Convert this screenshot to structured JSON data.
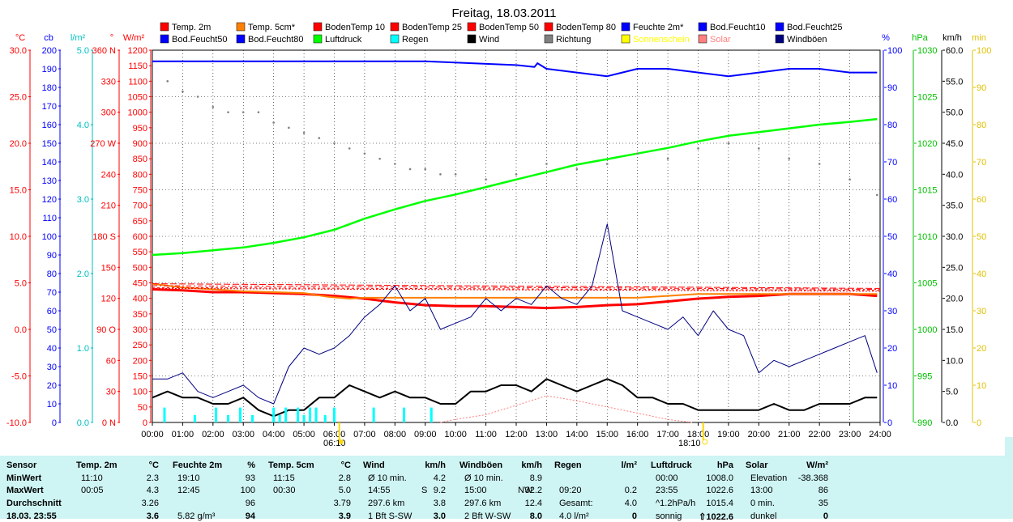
{
  "title": "Freitag, 18.03.2011",
  "colors": {
    "temp2m": "#ff0000",
    "temp5cm": "#ff8000",
    "boden": "#ff0000",
    "feuchte": "#0000ff",
    "luftdruck": "#00ff00",
    "regen": "#00ffff",
    "wind": "#000000",
    "richtung": "#808080",
    "sonne": "#ffff00",
    "solar": "#ff8080",
    "windboeen": "#000080",
    "stats_bg": "#cef4f4"
  },
  "legend": [
    {
      "label": "Temp. 2m",
      "color": "#ff0000"
    },
    {
      "label": "Temp. 5cm*",
      "color": "#ff8000"
    },
    {
      "label": "BodenTemp 10",
      "color": "#ff0000"
    },
    {
      "label": "BodenTemp 25",
      "color": "#ff0000"
    },
    {
      "label": "BodenTemp 50",
      "color": "#ff0000"
    },
    {
      "label": "BodenTemp 80",
      "color": "#ff0000"
    },
    {
      "label": "Feuchte 2m*",
      "color": "#0000ff"
    },
    {
      "label": "Bod.Feucht10",
      "color": "#0000ff"
    },
    {
      "label": "Bod.Feucht25",
      "color": "#0000ff"
    },
    {
      "label": "Bod.Feucht50",
      "color": "#0000ff"
    },
    {
      "label": "Bod.Feucht80",
      "color": "#0000ff"
    },
    {
      "label": "Luftdruck",
      "color": "#00ff00"
    },
    {
      "label": "Regen",
      "color": "#00ffff"
    },
    {
      "label": "Wind",
      "color": "#000000"
    },
    {
      "label": "Richtung",
      "color": "#808080"
    },
    {
      "label": "Sonnenschein",
      "color": "#ffff00"
    },
    {
      "label": "Solar",
      "color": "#ff8080"
    },
    {
      "label": "Windböen",
      "color": "#000080"
    }
  ],
  "axes": {
    "celsius": {
      "unit": "°C",
      "color": "#ff0000",
      "ticks": [
        "30.0",
        "25.0",
        "20.0",
        "15.0",
        "10.0",
        "5.0",
        "0.0",
        "-5.0",
        "-10.0"
      ]
    },
    "cb": {
      "unit": "cb",
      "color": "#0000ff",
      "ticks": [
        "200",
        "190",
        "180",
        "170",
        "160",
        "150",
        "140",
        "130",
        "120",
        "110",
        "100",
        "90",
        "80",
        "70",
        "60",
        "50",
        "40",
        "30",
        "20",
        "10",
        "0"
      ]
    },
    "lm2": {
      "unit": "l/m²",
      "color": "#00c0c0",
      "ticks": [
        "5.0",
        "4.0",
        "3.0",
        "2.0",
        "1.0",
        "0.0"
      ]
    },
    "deg": {
      "unit": "°",
      "color": "#ff0000",
      "ticks": [
        "360 N",
        "330",
        "300",
        "270 W",
        "240",
        "210",
        "180 S",
        "150",
        "120",
        "90 O",
        "60",
        "30",
        "0 N"
      ]
    },
    "wm2": {
      "unit": "W/m²",
      "color": "#ff0000",
      "ticks": [
        "1200",
        "1150",
        "1100",
        "1050",
        "1000",
        "950",
        "900",
        "850",
        "800",
        "750",
        "700",
        "650",
        "600",
        "550",
        "500",
        "450",
        "400",
        "350",
        "300",
        "250",
        "200",
        "150",
        "100",
        "50",
        "0"
      ]
    },
    "pct": {
      "unit": "%",
      "color": "#0000ff",
      "ticks": [
        "100",
        "90",
        "80",
        "70",
        "60",
        "50",
        "40",
        "30",
        "20",
        "10",
        "0"
      ]
    },
    "hpa": {
      "unit": "hPa",
      "color": "#00c000",
      "ticks": [
        "1030",
        "1025",
        "1020",
        "1015",
        "1010",
        "1005",
        "1000",
        "995",
        "990"
      ]
    },
    "kmh": {
      "unit": "km/h",
      "color": "#000000",
      "ticks": [
        "60.0",
        "55.0",
        "50.0",
        "45.0",
        "40.0",
        "35.0",
        "30.0",
        "25.0",
        "20.0",
        "15.0",
        "10.0",
        "5.0",
        "0.0"
      ]
    },
    "min": {
      "unit": "min",
      "color": "#e0c000",
      "ticks": [
        "100",
        "90",
        "80",
        "70",
        "60",
        "50",
        "40",
        "30",
        "20",
        "10",
        "0"
      ]
    }
  },
  "x_ticks": [
    "00:00",
    "01:00",
    "02:00",
    "03:00",
    "04:00",
    "05:00",
    "06:00",
    "07:00",
    "08:00",
    "09:00",
    "10:00",
    "11:00",
    "12:00",
    "13:00",
    "14:00",
    "15:00",
    "16:00",
    "17:00",
    "18:00",
    "19:00",
    "20:00",
    "21:00",
    "22:00",
    "23:00",
    "24:00"
  ],
  "sunrise": "06:10",
  "sunset": "18:10",
  "chart_data": {
    "type": "line",
    "title": "Freitag, 18.03.2011",
    "x_range": [
      "00:00",
      "24:00"
    ],
    "ylim_celsius": [
      -10,
      30
    ],
    "ylim_pct": [
      0,
      100
    ],
    "ylim_hpa": [
      990,
      1030
    ],
    "ylim_kmh": [
      0,
      60
    ],
    "ylim_deg": [
      0,
      360
    ],
    "ylim_wm2": [
      0,
      1200
    ],
    "grid": true,
    "legend_position": "top",
    "series": [
      {
        "name": "Temp. 2m",
        "axis": "celsius",
        "x": [
          0,
          1,
          2,
          3,
          4,
          5,
          6,
          7,
          8,
          9,
          10,
          11,
          12,
          13,
          14,
          15,
          16,
          17,
          18,
          19,
          20,
          21,
          22,
          23,
          23.9
        ],
        "y": [
          4.3,
          4.2,
          4.0,
          4.0,
          3.9,
          3.8,
          3.6,
          3.3,
          2.9,
          2.6,
          2.5,
          2.5,
          2.4,
          2.3,
          2.4,
          2.6,
          2.7,
          3.0,
          3.3,
          3.5,
          3.6,
          3.8,
          3.8,
          3.8,
          3.6
        ]
      },
      {
        "name": "Temp. 5cm*",
        "axis": "celsius",
        "x": [
          0,
          1,
          2,
          3,
          4,
          5,
          5.8,
          6.5,
          7,
          8,
          9,
          10,
          11,
          12,
          13,
          14,
          15,
          16,
          17,
          18,
          19,
          20,
          21,
          22,
          23,
          23.9
        ],
        "y": [
          4.9,
          4.5,
          4.3,
          4.1,
          4.0,
          3.9,
          3.5,
          3.3,
          3.4,
          3.4,
          3.4,
          3.4,
          3.4,
          3.4,
          3.4,
          3.4,
          3.4,
          3.4,
          3.6,
          3.8,
          3.8,
          3.8,
          3.8,
          3.8,
          3.8,
          3.8
        ]
      },
      {
        "name": "BodenTemp 10",
        "axis": "celsius",
        "x": [
          0,
          24
        ],
        "y": [
          4.9,
          4.4
        ]
      },
      {
        "name": "BodenTemp 25",
        "axis": "celsius",
        "x": [
          0,
          24
        ],
        "y": [
          4.7,
          4.3
        ]
      },
      {
        "name": "BodenTemp 50",
        "axis": "celsius",
        "x": [
          0,
          24
        ],
        "y": [
          4.5,
          4.2
        ]
      },
      {
        "name": "BodenTemp 80",
        "axis": "celsius",
        "x": [
          0,
          24
        ],
        "y": [
          4.4,
          4.1
        ]
      },
      {
        "name": "Feuchte 2m*",
        "axis": "pct",
        "x": [
          0,
          4,
          9,
          12,
          12.6,
          12.7,
          13,
          14,
          15,
          16,
          17,
          18,
          19,
          20,
          21,
          22,
          23,
          23.9
        ],
        "y": [
          97,
          97,
          97,
          96,
          95.5,
          96.5,
          95,
          94,
          93,
          95,
          95,
          94,
          93,
          94,
          95,
          95,
          94,
          94
        ]
      },
      {
        "name": "Luftdruck",
        "axis": "hpa",
        "x": [
          0,
          1,
          2,
          3,
          4,
          5,
          6,
          7,
          8,
          9,
          10,
          11,
          12,
          13,
          14,
          15,
          16,
          17,
          18,
          19,
          20,
          21,
          22,
          23,
          23.9
        ],
        "y": [
          1008.0,
          1008.2,
          1008.5,
          1008.8,
          1009.3,
          1009.9,
          1010.7,
          1011.9,
          1012.9,
          1013.8,
          1014.5,
          1015.3,
          1016.1,
          1016.9,
          1017.7,
          1018.3,
          1018.9,
          1019.5,
          1020.2,
          1020.8,
          1021.2,
          1021.6,
          1022.0,
          1022.3,
          1022.6
        ]
      },
      {
        "name": "Wind",
        "axis": "kmh",
        "x": [
          0,
          0.5,
          1,
          1.5,
          2,
          2.5,
          3,
          3.5,
          4,
          4.5,
          5,
          5.5,
          6,
          6.5,
          7,
          7.5,
          8,
          8.5,
          9,
          9.5,
          10,
          10.5,
          11,
          11.5,
          12,
          12.5,
          13,
          13.5,
          14,
          14.5,
          15,
          15.5,
          16,
          16.5,
          17,
          17.5,
          18,
          18.5,
          19,
          19.5,
          20,
          20.5,
          21,
          21.5,
          22,
          22.5,
          23,
          23.5,
          23.9
        ],
        "y": [
          4,
          5,
          4,
          4,
          3,
          3,
          4,
          2,
          1,
          2,
          2,
          4,
          4,
          6,
          5,
          4,
          5,
          4,
          4,
          3,
          3,
          5,
          5,
          6,
          6,
          5,
          7,
          6,
          5,
          6,
          7,
          6,
          4,
          4,
          3,
          3,
          2,
          2,
          2,
          2,
          2,
          3,
          2,
          2,
          3,
          3,
          3,
          4,
          4
        ]
      },
      {
        "name": "Windböen",
        "axis": "kmh",
        "x": [
          0,
          0.5,
          1,
          1.5,
          2,
          2.5,
          3,
          3.5,
          4,
          4.5,
          5,
          5.5,
          6,
          6.5,
          7,
          7.5,
          8,
          8.5,
          9,
          9.5,
          10,
          10.5,
          11,
          11.5,
          12,
          12.5,
          13,
          13.5,
          14,
          14.5,
          15,
          15.5,
          16,
          16.5,
          17,
          17.5,
          18,
          18.5,
          19,
          19.5,
          20,
          20.5,
          21,
          21.5,
          22,
          22.5,
          23,
          23.5,
          23.9
        ],
        "y": [
          7,
          7,
          8,
          5,
          4,
          5,
          6,
          4,
          3,
          9,
          12,
          11,
          12,
          14,
          17,
          19,
          22,
          18,
          20,
          15,
          16,
          17,
          20,
          18,
          20,
          19,
          22,
          20,
          19,
          22,
          32,
          18,
          17,
          16,
          15,
          17,
          14,
          18,
          15,
          14,
          8,
          10,
          9,
          10,
          11,
          12,
          13,
          14,
          8
        ]
      },
      {
        "name": "Richtung",
        "axis": "deg",
        "x": [
          0.5,
          1,
          1.5,
          2,
          2.5,
          3,
          3.5,
          4,
          4.5,
          5,
          5.5,
          6,
          6.5,
          7,
          7.5,
          8,
          8.5,
          9,
          9.5,
          10,
          11,
          12,
          13,
          14,
          15,
          16,
          17,
          18,
          19,
          20,
          21,
          22,
          23,
          23.9
        ],
        "y": [
          330,
          320,
          315,
          305,
          300,
          300,
          300,
          290,
          285,
          280,
          275,
          270,
          265,
          260,
          255,
          250,
          245,
          245,
          240,
          240,
          235,
          240,
          250,
          245,
          250,
          260,
          255,
          265,
          270,
          265,
          255,
          250,
          235,
          220
        ]
      },
      {
        "name": "Regen",
        "axis": "lm2",
        "x": [
          0.4,
          1.4,
          2.1,
          2.5,
          2.9,
          3.3,
          4.0,
          4.2,
          4.4,
          4.8,
          5.0,
          5.2,
          5.4,
          5.7,
          6.0,
          7.3,
          8.3,
          9.2
        ],
        "y": [
          0.2,
          0.1,
          0.2,
          0.1,
          0.2,
          0.1,
          0.2,
          0.1,
          0.2,
          0.2,
          0.1,
          0.2,
          0.2,
          0.1,
          0.2,
          0.2,
          0.2,
          0.2
        ]
      },
      {
        "name": "Solar",
        "axis": "wm2",
        "x": [
          9.5,
          10,
          11,
          12,
          13,
          14,
          15,
          16,
          17,
          17.8
        ],
        "y": [
          0,
          10,
          25,
          55,
          86,
          70,
          50,
          30,
          10,
          0
        ]
      }
    ]
  },
  "stats": {
    "headers": [
      {
        "label": "Sensor",
        "unit": ""
      },
      {
        "label": "Temp. 2m",
        "unit": "°C"
      },
      {
        "label": "Feuchte 2m",
        "unit": "%"
      },
      {
        "label": "Temp. 5cm",
        "unit": "°C"
      },
      {
        "label": "Wind",
        "unit": "km/h"
      },
      {
        "label": "Windböen",
        "unit": "km/h"
      },
      {
        "label": "Regen",
        "unit": "l/m²"
      },
      {
        "label": "Luftdruck",
        "unit": "hPa"
      },
      {
        "label": "Solar",
        "unit": "W/m²"
      }
    ],
    "row_labels": [
      "MinWert",
      "MaxWert",
      "Durchschnitt",
      "18.03. 23:55"
    ],
    "cells": [
      [
        {
          "a": "11:10",
          "b": "2.3"
        },
        {
          "a": "19:10",
          "b": "93"
        },
        {
          "a": "11:15",
          "b": "2.8"
        },
        {
          "a": "Ø 10 min.",
          "b": "4.2"
        },
        {
          "a": "Ø 10 min.",
          "b": "8.9"
        },
        {
          "a": "",
          "b": ""
        },
        {
          "a": "00:00",
          "b": "1008.0"
        },
        {
          "a": "Elevation",
          "b": "-38.368"
        }
      ],
      [
        {
          "a": "00:05",
          "b": "4.3"
        },
        {
          "a": "12:45",
          "b": "100"
        },
        {
          "a": "00:30",
          "b": "5.0"
        },
        {
          "a": "14:55",
          "m": "S",
          "b": "9.2"
        },
        {
          "a": "15:00",
          "m": "NW",
          "b": "32.2"
        },
        {
          "a": "09:20",
          "b": "0.2"
        },
        {
          "a": "23:55",
          "b": "1022.6"
        },
        {
          "a": "13:00",
          "b": "86"
        }
      ],
      [
        {
          "a": "",
          "b": "3.26"
        },
        {
          "a": "",
          "b": "96"
        },
        {
          "a": "",
          "b": "3.79"
        },
        {
          "a": "297.6 km",
          "b": "3.8"
        },
        {
          "a": "297.6 km",
          "b": "12.4"
        },
        {
          "a": "Gesamt:",
          "b": "4.0"
        },
        {
          "a": "^1.2hPa/h",
          "b": "1015.4"
        },
        {
          "a": "0 min.",
          "b": "35"
        }
      ],
      [
        {
          "a": "",
          "b": "3.6"
        },
        {
          "a": "5.82 g/m³",
          "b": "94"
        },
        {
          "a": "",
          "b": "3.9"
        },
        {
          "a": "1 Bft S-SW",
          "b": "3.0"
        },
        {
          "a": "2 Bft W-SW",
          "b": "8.0"
        },
        {
          "a": "4.0 l/m²",
          "b": "0"
        },
        {
          "a": "sonnig",
          "b": "⇧1022.6"
        },
        {
          "a": "dunkel",
          "b": "0"
        }
      ]
    ]
  }
}
